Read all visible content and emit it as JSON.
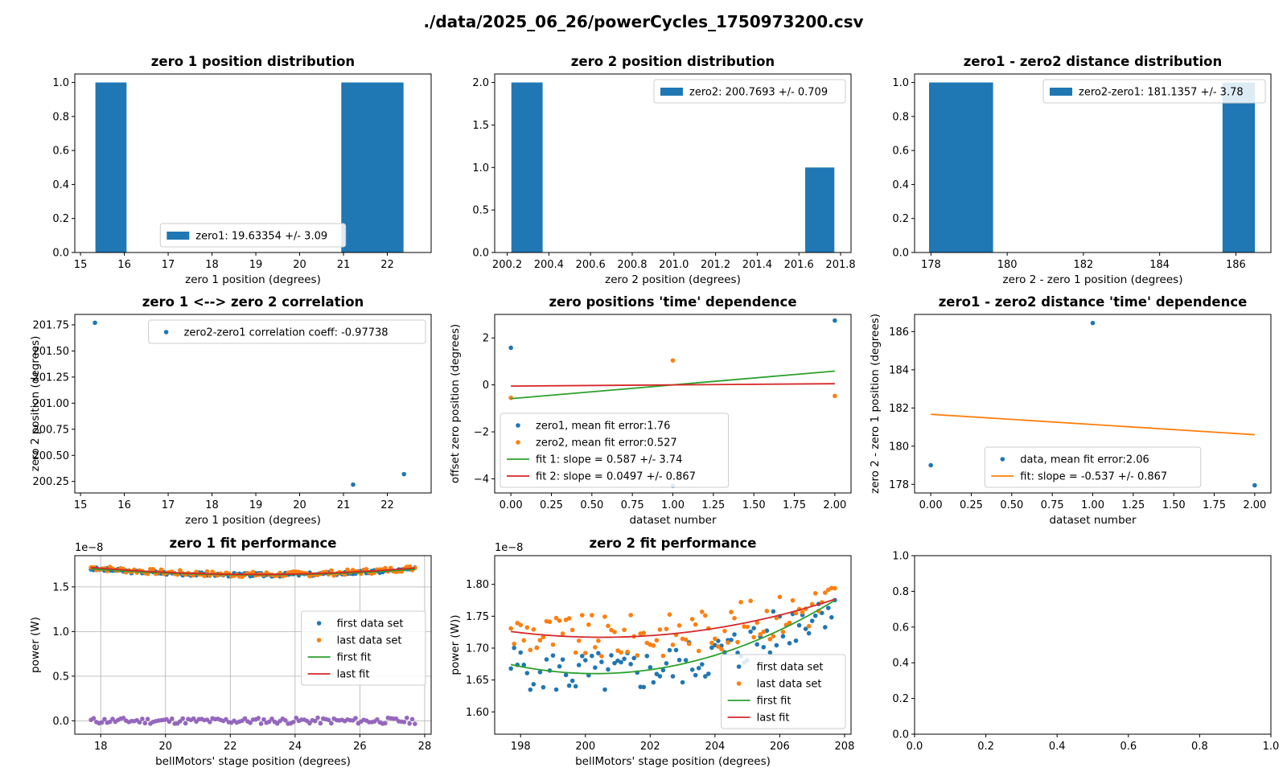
{
  "figure_title": "./data/2025_06_26/powerCycles_1750973200.csv",
  "chart_data": [
    {
      "id": "p1",
      "type": "bar",
      "title": "zero 1 position distribution",
      "xlabel": "zero 1 position (degrees)",
      "ylabel": "",
      "xlim": [
        14.87,
        23.0
      ],
      "ylim": [
        0,
        1.05
      ],
      "xticks": [
        15,
        16,
        17,
        18,
        19,
        20,
        21,
        22
      ],
      "yticks": [
        0.0,
        0.2,
        0.4,
        0.6,
        0.8,
        1.0
      ],
      "xtick_labels": [
        "15",
        "16",
        "17",
        "18",
        "19",
        "20",
        "21",
        "22"
      ],
      "ytick_labels": [
        "0.0",
        "0.2",
        "0.4",
        "0.6",
        "0.8",
        "1.0"
      ],
      "bars": [
        {
          "x0": 15.34,
          "x1": 16.05,
          "h": 1
        },
        {
          "x0": 20.95,
          "x1": 22.37,
          "h": 1
        }
      ],
      "legend": [
        {
          "kind": "bar",
          "color": "#1f77b4",
          "label": "zero1: 19.63354 +/- 3.09"
        }
      ],
      "legend_loc": "lower-center"
    },
    {
      "id": "p2",
      "type": "bar",
      "title": "zero 2 position distribution",
      "xlabel": "zero 2 position (degrees)",
      "ylabel": "",
      "xlim": [
        200.14,
        201.85
      ],
      "ylim": [
        0,
        2.1
      ],
      "xticks": [
        200.2,
        200.4,
        200.6,
        200.8,
        201.0,
        201.2,
        201.4,
        201.6,
        201.8
      ],
      "yticks": [
        0.0,
        0.5,
        1.0,
        1.5,
        2.0
      ],
      "xtick_labels": [
        "200.2",
        "200.4",
        "200.6",
        "200.8",
        "201.0",
        "201.2",
        "201.4",
        "201.6",
        "201.8"
      ],
      "ytick_labels": [
        "0.0",
        "0.5",
        "1.0",
        "1.5",
        "2.0"
      ],
      "bars": [
        {
          "x0": 200.22,
          "x1": 200.37,
          "h": 2
        },
        {
          "x0": 201.63,
          "x1": 201.77,
          "h": 1
        }
      ],
      "legend": [
        {
          "kind": "bar",
          "color": "#1f77b4",
          "label": "zero2: 200.7693 +/- 0.709"
        }
      ],
      "legend_loc": "upper-right"
    },
    {
      "id": "p3",
      "type": "bar",
      "title": "zero1 - zero2 distance distribution",
      "xlabel": "zero 2 - zero 1 position (degrees)",
      "ylabel": "",
      "xlim": [
        177.57,
        186.92
      ],
      "ylim": [
        0,
        1.05
      ],
      "xticks": [
        178,
        180,
        182,
        184,
        186
      ],
      "yticks": [
        0.0,
        0.2,
        0.4,
        0.6,
        0.8,
        1.0
      ],
      "xtick_labels": [
        "178",
        "180",
        "182",
        "184",
        "186"
      ],
      "ytick_labels": [
        "0.0",
        "0.2",
        "0.4",
        "0.6",
        "0.8",
        "1.0"
      ],
      "bars": [
        {
          "x0": 177.95,
          "x1": 179.63,
          "h": 1
        },
        {
          "x0": 185.65,
          "x1": 186.5,
          "h": 1
        }
      ],
      "legend": [
        {
          "kind": "bar",
          "color": "#1f77b4",
          "label": "zero2-zero1: 181.1357 +/- 3.78"
        }
      ],
      "legend_loc": "upper-right"
    },
    {
      "id": "p4",
      "type": "scatter",
      "title": "zero 1 <--> zero 2 correlation",
      "xlabel": "zero 1 position (degrees)",
      "ylabel": "zero 2 position (degrees)",
      "xlim": [
        14.87,
        23.0
      ],
      "ylim": [
        200.14,
        201.85
      ],
      "xticks": [
        15,
        16,
        17,
        18,
        19,
        20,
        21,
        22
      ],
      "yticks": [
        200.25,
        200.5,
        200.75,
        201.0,
        201.25,
        201.5,
        201.75
      ],
      "xtick_labels": [
        "15",
        "16",
        "17",
        "18",
        "19",
        "20",
        "21",
        "22"
      ],
      "ytick_labels": [
        "200.25",
        "200.50",
        "200.75",
        "201.00",
        "201.25",
        "201.50",
        "201.75"
      ],
      "series": [
        {
          "name": "zero2-zero1 correlation coeff: -0.97738",
          "color": "#1f77b4",
          "points": [
            [
              15.33,
              201.77
            ],
            [
              21.22,
              200.22
            ],
            [
              22.38,
              200.32
            ]
          ]
        }
      ],
      "legend": [
        {
          "kind": "dot",
          "color": "#1f77b4",
          "label": "zero2-zero1 correlation coeff: -0.97738"
        }
      ],
      "legend_loc": "upper-right"
    },
    {
      "id": "p5",
      "type": "scatter",
      "title": "zero positions 'time' dependence",
      "xlabel": "dataset number",
      "ylabel": "offset zero position (degrees)",
      "xlim": [
        -0.1,
        2.1
      ],
      "ylim": [
        -4.6,
        3.0
      ],
      "xticks": [
        0,
        0.25,
        0.5,
        0.75,
        1.0,
        1.25,
        1.5,
        1.75,
        2.0
      ],
      "yticks": [
        -4,
        -2,
        0,
        2
      ],
      "xtick_labels": [
        "0.00",
        "0.25",
        "0.50",
        "0.75",
        "1.00",
        "1.25",
        "1.50",
        "1.75",
        "2.00"
      ],
      "ytick_labels": [
        "−4",
        "−2",
        "0",
        "2"
      ],
      "series": [
        {
          "name": "zero1, mean fit error:1.76",
          "color": "#1f77b4",
          "points": [
            [
              0,
              1.58
            ],
            [
              1,
              -4.3
            ],
            [
              2,
              2.74
            ]
          ]
        },
        {
          "name": "zero2, mean fit error:0.527",
          "color": "#ff7f0e",
          "points": [
            [
              0,
              -0.55
            ],
            [
              1,
              1.04
            ],
            [
              2,
              -0.47
            ]
          ]
        }
      ],
      "lines": [
        {
          "name": "fit 1: slope = 0.587 +/- 3.74",
          "color": "#2ca02c",
          "points": [
            [
              0,
              -0.587
            ],
            [
              2,
              0.587
            ]
          ]
        },
        {
          "name": "fit 2: slope = 0.0497 +/- 0.867",
          "color": "#d62728",
          "points": [
            [
              0,
              -0.05
            ],
            [
              2,
              0.05
            ]
          ]
        }
      ],
      "legend": [
        {
          "kind": "dot",
          "color": "#1f77b4",
          "label": "zero1, mean fit error:1.76"
        },
        {
          "kind": "dot",
          "color": "#ff7f0e",
          "label": "zero2, mean fit error:0.527"
        },
        {
          "kind": "line",
          "color": "#2ca02c",
          "label": "fit 1: slope = 0.587 +/- 3.74"
        },
        {
          "kind": "line",
          "color": "#d62728",
          "label": "fit 2: slope = 0.0497 +/- 0.867"
        }
      ],
      "legend_loc": "lower-left"
    },
    {
      "id": "p6",
      "type": "scatter",
      "title": "zero1 - zero2 distance 'time' dependence",
      "xlabel": "dataset number",
      "ylabel": "zero 2 - zero 1 position (degrees)",
      "xlim": [
        -0.1,
        2.1
      ],
      "ylim": [
        177.55,
        186.9
      ],
      "xticks": [
        0,
        0.25,
        0.5,
        0.75,
        1.0,
        1.25,
        1.5,
        1.75,
        2.0
      ],
      "yticks": [
        178,
        180,
        182,
        184,
        186
      ],
      "xtick_labels": [
        "0.00",
        "0.25",
        "0.50",
        "0.75",
        "1.00",
        "1.25",
        "1.50",
        "1.75",
        "2.00"
      ],
      "ytick_labels": [
        "178",
        "180",
        "182",
        "184",
        "186"
      ],
      "series": [
        {
          "name": "data, mean fit error:2.06",
          "color": "#1f77b4",
          "points": [
            [
              0,
              179.0
            ],
            [
              1,
              186.45
            ],
            [
              2,
              177.95
            ]
          ]
        }
      ],
      "lines": [
        {
          "name": "fit: slope = -0.537 +/- 0.867",
          "color": "#ff7f0e",
          "points": [
            [
              0,
              181.67
            ],
            [
              2,
              180.6
            ]
          ]
        }
      ],
      "legend": [
        {
          "kind": "dot",
          "color": "#1f77b4",
          "label": "data, mean fit error:2.06"
        },
        {
          "kind": "line",
          "color": "#ff7f0e",
          "label": "fit: slope = -0.537 +/- 0.867"
        }
      ],
      "legend_loc": "lower-center"
    },
    {
      "id": "p7",
      "type": "scatter",
      "title": "zero 1 fit performance",
      "xlabel": "bellMotors' stage position (degrees)",
      "ylabel": "power (W)",
      "offset_text": "1e−8",
      "xlim": [
        17.2,
        28.2
      ],
      "ylim": [
        -0.15,
        1.85
      ],
      "xticks": [
        18,
        20,
        22,
        24,
        26,
        28
      ],
      "yticks": [
        0.0,
        0.5,
        1.0,
        1.5
      ],
      "xtick_labels": [
        "18",
        "20",
        "22",
        "24",
        "26",
        "28"
      ],
      "ytick_labels": [
        "0.0",
        "0.5",
        "1.0",
        "1.5"
      ],
      "grid": true,
      "generated": {
        "x_start": 17.7,
        "x_end": 27.7,
        "count": 121
      },
      "series": [
        {
          "name": "first data set",
          "color": "#1f77b4",
          "model": {
            "kind": "quadratic",
            "c": 22.8,
            "a": 0.0026,
            "base": 1.635,
            "amp": 0.02,
            "seed": 3
          }
        },
        {
          "name": "last data set",
          "color": "#ff7f0e",
          "model": {
            "kind": "quadratic",
            "c": 22.8,
            "a": 0.003,
            "base": 1.64,
            "amp": 0.03,
            "seed": 7
          }
        },
        {
          "name": "",
          "color": "#9467bd",
          "model": {
            "kind": "quadratic",
            "c": 22.8,
            "a": 0,
            "base": 0.0,
            "amp": 0.035,
            "seed": 11
          }
        }
      ],
      "lines": [
        {
          "name": "first fit",
          "color": "#2ca02c",
          "model": {
            "kind": "quadratic",
            "c": 22.8,
            "a": 0.0026,
            "base": 1.635
          }
        },
        {
          "name": "last fit",
          "color": "#d62728",
          "model": {
            "kind": "quadratic",
            "c": 22.8,
            "a": 0.003,
            "base": 1.64
          }
        }
      ],
      "legend": [
        {
          "kind": "dot",
          "color": "#1f77b4",
          "label": "first data set"
        },
        {
          "kind": "dot",
          "color": "#ff7f0e",
          "label": "last data set"
        },
        {
          "kind": "line",
          "color": "#2ca02c",
          "label": "first fit"
        },
        {
          "kind": "line",
          "color": "#d62728",
          "label": "last fit"
        }
      ],
      "legend_loc": "center-right"
    },
    {
      "id": "p8",
      "type": "scatter",
      "title": "zero 2 fit performance",
      "xlabel": "bellMotors' stage position (degrees)",
      "ylabel": "power (W))",
      "offset_text": "1e−8",
      "xlim": [
        197.2,
        208.2
      ],
      "ylim": [
        1.565,
        1.845
      ],
      "xticks": [
        198,
        200,
        202,
        204,
        206,
        208
      ],
      "yticks": [
        1.6,
        1.65,
        1.7,
        1.75,
        1.8
      ],
      "xtick_labels": [
        "198",
        "200",
        "202",
        "204",
        "206",
        "208"
      ],
      "ytick_labels": [
        "1.60",
        "1.65",
        "1.70",
        "1.75",
        "1.80"
      ],
      "grid": false,
      "generated": {
        "x_start": 197.7,
        "x_end": 207.7,
        "count": 101
      },
      "series": [
        {
          "name": "first data set",
          "color": "#1f77b4",
          "model": {
            "kind": "quadratic",
            "c": 200.3,
            "a": 0.0021,
            "base": 1.66,
            "amp": 0.035,
            "seed": 5
          }
        },
        {
          "name": "last data set",
          "color": "#ff7f0e",
          "model": {
            "kind": "quadratic",
            "c": 200.5,
            "a": 0.00115,
            "base": 1.717,
            "amp": 0.035,
            "seed": 9
          }
        }
      ],
      "lines": [
        {
          "name": "first fit",
          "color": "#2ca02c",
          "model": {
            "kind": "quadratic",
            "c": 200.3,
            "a": 0.0021,
            "base": 1.66
          }
        },
        {
          "name": "last fit",
          "color": "#d62728",
          "model": {
            "kind": "quadratic",
            "c": 200.5,
            "a": 0.00115,
            "base": 1.717
          }
        }
      ],
      "legend": [
        {
          "kind": "dot",
          "color": "#1f77b4",
          "label": "first data set"
        },
        {
          "kind": "dot",
          "color": "#ff7f0e",
          "label": "last data set"
        },
        {
          "kind": "line",
          "color": "#2ca02c",
          "label": "first fit"
        },
        {
          "kind": "line",
          "color": "#d62728",
          "label": "last fit"
        }
      ],
      "legend_loc": "lower-right"
    },
    {
      "id": "p9",
      "type": "empty",
      "title": "",
      "xlabel": "",
      "ylabel": "",
      "xlim": [
        0,
        1
      ],
      "ylim": [
        0,
        1
      ],
      "xticks": [
        0,
        0.2,
        0.4,
        0.6,
        0.8,
        1.0
      ],
      "yticks": [
        0,
        0.2,
        0.4,
        0.6,
        0.8,
        1.0
      ],
      "xtick_labels": [
        "0.0",
        "0.2",
        "0.4",
        "0.6",
        "0.8",
        "1.0"
      ],
      "ytick_labels": [
        "0.0",
        "0.2",
        "0.4",
        "0.6",
        "0.8",
        "1.0"
      ]
    }
  ]
}
